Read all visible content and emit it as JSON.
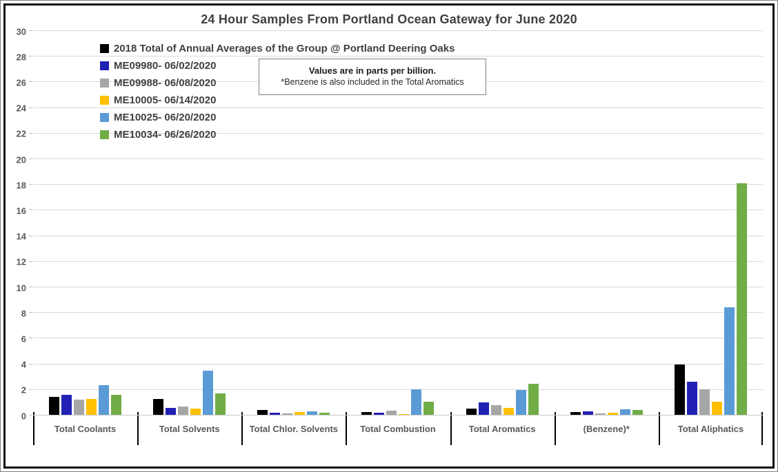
{
  "title": "24 Hour Samples From Portland Ocean Gateway for June 2020",
  "note": {
    "line1": "Values are in parts per billion.",
    "line2": "*Benzene is also included in the Total Aromatics"
  },
  "chart_data": {
    "type": "bar",
    "title": "24 Hour Samples From Portland Ocean Gateway for June 2020",
    "unit": "parts per billion",
    "categories": [
      "Total Coolants",
      "Total Solvents",
      "Total Chlor. Solvents",
      "Total Combustion",
      "Total Aromatics",
      "(Benzene)*",
      "Total Aliphatics"
    ],
    "series": [
      {
        "name": "2018 Total of Annual Averages of the Group @ Portland Deering Oaks",
        "color": "#000000",
        "values": [
          1.45,
          1.3,
          0.45,
          0.25,
          0.55,
          0.25,
          4.0
        ]
      },
      {
        "name": "ME09980- 06/02/2020",
        "color": "#2121B5",
        "values": [
          1.6,
          0.6,
          0.2,
          0.2,
          1.0,
          0.3,
          2.65
        ]
      },
      {
        "name": "ME09988- 06/08/2020",
        "color": "#A6A6A6",
        "values": [
          1.25,
          0.7,
          0.15,
          0.4,
          0.8,
          0.15,
          2.05
        ]
      },
      {
        "name": "ME10005- 06/14/2020",
        "color": "#FFC000",
        "values": [
          1.3,
          0.55,
          0.25,
          0.1,
          0.6,
          0.2,
          1.1
        ]
      },
      {
        "name": "ME10025- 06/20/2020",
        "color": "#5B9BD5",
        "values": [
          2.35,
          3.5,
          0.35,
          2.05,
          2.0,
          0.5,
          8.45
        ]
      },
      {
        "name": "ME10034- 06/26/2020",
        "color": "#70AD47",
        "values": [
          1.6,
          1.7,
          0.2,
          1.1,
          2.45,
          0.45,
          18.1
        ]
      }
    ],
    "ylim": [
      0,
      30
    ],
    "yticks": [
      0,
      2,
      4,
      6,
      8,
      10,
      12,
      14,
      16,
      18,
      20,
      22,
      24,
      26,
      28,
      30
    ],
    "grid": true,
    "legend_position": "top-left"
  },
  "colors": {
    "gridline": "#D9D9D9",
    "axis_text": "#595959",
    "title_text": "#404040",
    "legend_text": "#404040",
    "category_separator": "#000000"
  }
}
